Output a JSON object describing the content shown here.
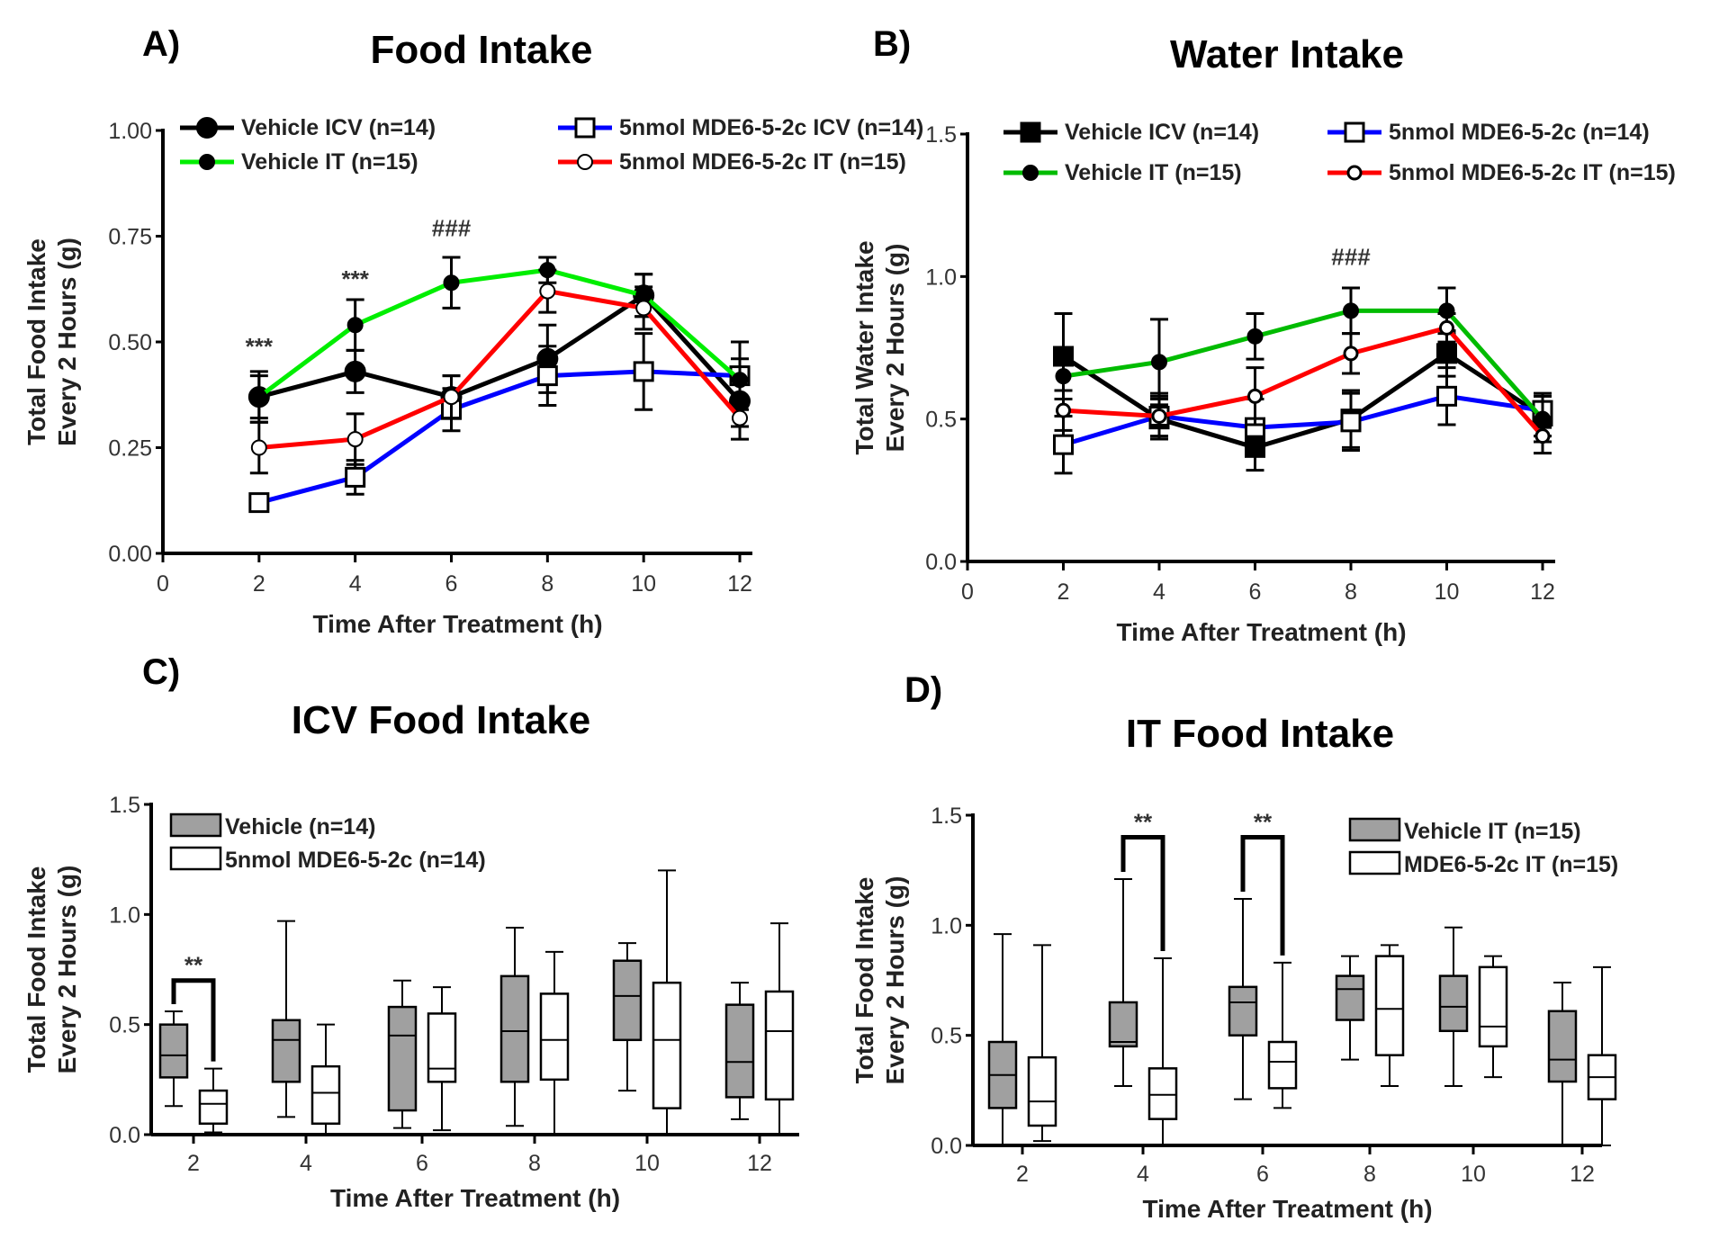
{
  "chart_data": [
    {
      "panel": "A)",
      "type": "line",
      "title": "Food Intake",
      "xlabel": "Time After Treatment (h)",
      "ylabel": [
        "Total Food Intake",
        "Every 2 Hours (g)"
      ],
      "xlim": [
        0,
        12
      ],
      "ylim": [
        0,
        1
      ],
      "xticks": [
        "0",
        "2",
        "4",
        "6",
        "8",
        "10",
        "12"
      ],
      "yticks": [
        "0.00",
        "0.25",
        "0.50",
        "0.75",
        "1.00"
      ],
      "x": [
        2,
        4,
        6,
        8,
        10,
        12
      ],
      "series": [
        {
          "name": "Vehicle ICV (n=14)",
          "color": "#000000",
          "marker": "filled-circle-large",
          "values": [
            0.37,
            0.43,
            0.37,
            0.46,
            0.61,
            0.36
          ],
          "error": [
            0.05,
            0.05,
            0.05,
            0.08,
            0.05,
            0.06
          ]
        },
        {
          "name": "5nmol MDE6-5-2c ICV (n=14)",
          "color": "#0000ff",
          "marker": "open-square",
          "values": [
            0.12,
            0.18,
            0.34,
            0.42,
            0.43,
            0.42
          ],
          "error": [
            0.01,
            0.04,
            0.05,
            0.07,
            0.09,
            0.08
          ]
        },
        {
          "name": "Vehicle IT (n=15)",
          "color": "#00ee00",
          "marker": "filled-circle",
          "values": [
            0.37,
            0.54,
            0.64,
            0.67,
            0.61,
            0.41
          ],
          "error": [
            0.06,
            0.06,
            0.06,
            0.03,
            0.05,
            0.05
          ]
        },
        {
          "name": "5nmol MDE6-5-2c IT (n=15)",
          "color": "#ff0000",
          "marker": "open-circle",
          "values": [
            0.25,
            0.27,
            0.37,
            0.62,
            0.58,
            0.32
          ],
          "error": [
            0.06,
            0.06,
            0.05,
            0.05,
            0.05,
            0.05
          ]
        }
      ],
      "annotations": [
        {
          "x": 2,
          "text": "***",
          "y": 0.47
        },
        {
          "x": 4,
          "text": "***",
          "y": 0.63
        },
        {
          "x": 6,
          "text": "###",
          "y": 0.75
        }
      ]
    },
    {
      "panel": "B)",
      "type": "line",
      "title": "Water Intake",
      "xlabel": "Time After Treatment (h)",
      "ylabel": [
        "Total Water Intake",
        "Every 2 Hours (g)"
      ],
      "xlim": [
        0,
        12
      ],
      "ylim": [
        0,
        1.5
      ],
      "xticks": [
        "0",
        "2",
        "4",
        "6",
        "8",
        "10",
        "12"
      ],
      "yticks": [
        "0.0",
        "0.5",
        "1.0",
        "1.5"
      ],
      "x": [
        2,
        4,
        6,
        8,
        10,
        12
      ],
      "series": [
        {
          "name": "Vehicle ICV (n=14)",
          "color": "#000000",
          "marker": "filled-square",
          "values": [
            0.72,
            0.5,
            0.4,
            0.5,
            0.73,
            0.51
          ],
          "error": [
            0.15,
            0.07,
            0.08,
            0.1,
            0.08,
            0.07
          ]
        },
        {
          "name": "5nmol MDE6-5-2c (n=14)",
          "color": "#0000ff",
          "marker": "open-square",
          "values": [
            0.41,
            0.51,
            0.47,
            0.49,
            0.58,
            0.53
          ],
          "error": [
            0.1,
            0.08,
            0.1,
            0.1,
            0.1,
            0.06
          ]
        },
        {
          "name": "Vehicle IT (n=15)",
          "color": "#00bb00",
          "marker": "filled-circle",
          "values": [
            0.65,
            0.7,
            0.79,
            0.88,
            0.88,
            0.5
          ],
          "error": [
            0.08,
            0.15,
            0.08,
            0.08,
            0.08,
            0.08
          ]
        },
        {
          "name": "5nmol MDE6-5-2c IT (n=15)",
          "color": "#ff0000",
          "marker": "open-diamond",
          "values": [
            0.53,
            0.51,
            0.58,
            0.73,
            0.82,
            0.44
          ],
          "error": [
            0.07,
            0.07,
            0.1,
            0.07,
            0.05,
            0.06
          ]
        }
      ],
      "annotations": [
        {
          "x": 8,
          "text": "###",
          "y": 1.04
        }
      ]
    },
    {
      "panel": "C)",
      "type": "box",
      "title": "ICV Food Intake",
      "xlabel": "Time After Treatment (h)",
      "ylabel": [
        "Total Food Intake",
        "Every 2 Hours (g)"
      ],
      "ylim": [
        0,
        1.5
      ],
      "yticks": [
        "0.0",
        "0.5",
        "1.0",
        "1.5"
      ],
      "categories": [
        "2",
        "4",
        "6",
        "8",
        "10",
        "12"
      ],
      "series": [
        {
          "name": "Vehicle (n=14)",
          "fill": "#a0a0a0",
          "boxes": [
            [
              0.13,
              0.26,
              0.36,
              0.5,
              0.56
            ],
            [
              0.08,
              0.24,
              0.43,
              0.52,
              0.97
            ],
            [
              0.03,
              0.11,
              0.45,
              0.58,
              0.7
            ],
            [
              0.04,
              0.24,
              0.47,
              0.72,
              0.94
            ],
            [
              0.2,
              0.43,
              0.63,
              0.79,
              0.87
            ],
            [
              0.07,
              0.17,
              0.33,
              0.59,
              0.69
            ]
          ]
        },
        {
          "name": "5nmol MDE6-5-2c (n=14)",
          "fill": "#ffffff",
          "boxes": [
            [
              0.01,
              0.05,
              0.14,
              0.2,
              0.3
            ],
            [
              0,
              0.05,
              0.19,
              0.31,
              0.5
            ],
            [
              0.02,
              0.24,
              0.3,
              0.55,
              0.67
            ],
            [
              0,
              0.25,
              0.43,
              0.64,
              0.83
            ],
            [
              0,
              0.12,
              0.43,
              0.69,
              1.2
            ],
            [
              0,
              0.16,
              0.47,
              0.65,
              0.96
            ]
          ]
        }
      ],
      "annotations": [
        {
          "category": "2",
          "text": "**"
        }
      ]
    },
    {
      "panel": "D)",
      "type": "box",
      "title": "IT Food Intake",
      "xlabel": "Time After Treatment (h)",
      "ylabel": [
        "Total Food Intake",
        "Every 2 Hours (g)"
      ],
      "ylim": [
        0,
        1.5
      ],
      "yticks": [
        "0.0",
        "0.5",
        "1.0",
        "1.5"
      ],
      "categories": [
        "2",
        "4",
        "6",
        "8",
        "10",
        "12"
      ],
      "series": [
        {
          "name": "Vehicle IT (n=15)",
          "fill": "#a0a0a0",
          "boxes": [
            [
              0,
              0.17,
              0.32,
              0.47,
              0.96
            ],
            [
              0.27,
              0.45,
              0.47,
              0.65,
              1.21
            ],
            [
              0.21,
              0.5,
              0.65,
              0.72,
              1.12
            ],
            [
              0.39,
              0.57,
              0.71,
              0.77,
              0.86
            ],
            [
              0.27,
              0.52,
              0.63,
              0.77,
              0.99
            ],
            [
              0,
              0.29,
              0.39,
              0.61,
              0.74
            ]
          ]
        },
        {
          "name": "MDE6-5-2c IT (n=15)",
          "fill": "#ffffff",
          "boxes": [
            [
              0.02,
              0.09,
              0.2,
              0.4,
              0.91
            ],
            [
              0,
              0.12,
              0.23,
              0.35,
              0.85
            ],
            [
              0.17,
              0.26,
              0.38,
              0.47,
              0.83
            ],
            [
              0.27,
              0.41,
              0.62,
              0.86,
              0.91
            ],
            [
              0.31,
              0.45,
              0.54,
              0.81,
              0.86
            ],
            [
              0,
              0.21,
              0.31,
              0.41,
              0.81
            ]
          ]
        }
      ],
      "annotations": [
        {
          "category": "4",
          "text": "**"
        },
        {
          "category": "6",
          "text": "**"
        }
      ]
    }
  ]
}
